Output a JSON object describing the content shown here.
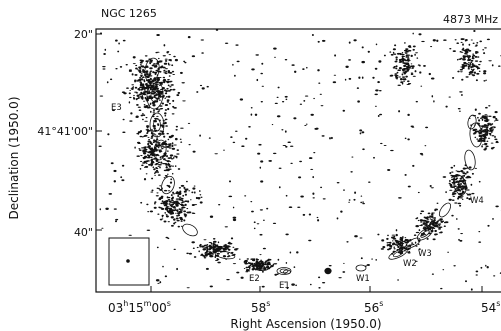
{
  "header": {
    "object_name": "NGC 1265",
    "frequency": "4873 MHz"
  },
  "axes": {
    "xlabel": "Right Ascension (1950.0)",
    "ylabel": "Declination (1950.0)",
    "x_ticks": [
      {
        "hours": "03",
        "minutes": "15",
        "seconds": "00",
        "unit": "s"
      },
      {
        "seconds": "58",
        "unit": "s"
      },
      {
        "seconds": "56",
        "unit": "s"
      },
      {
        "seconds": "54",
        "unit": "s"
      }
    ],
    "y_ticks": [
      "20\"",
      "41°41'00\"",
      "40\""
    ]
  },
  "components": [
    "E1",
    "E2",
    "E3",
    "W1",
    "W2",
    "W3",
    "W4"
  ]
}
